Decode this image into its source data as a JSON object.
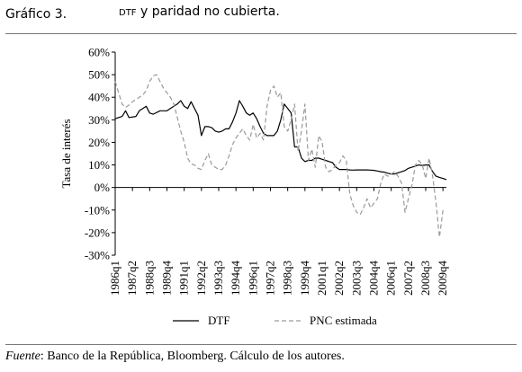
{
  "figure": {
    "number": "Gráfico 3.",
    "title_caps": "DTF",
    "title_rest": " y paridad no cubierta.",
    "source_label": "Fuente",
    "source_text": ": Banco de la República, Bloomberg. Cálculo de los autores."
  },
  "chart_data": {
    "type": "line",
    "ylabel": "Tasa de interés",
    "ylim": [
      -30,
      60
    ],
    "yticks": [
      "60%",
      "50%",
      "40%",
      "30%",
      "20%",
      "10%",
      "0%",
      "-10%",
      "-20%",
      "-30%"
    ],
    "ytick_values": [
      60,
      50,
      40,
      30,
      20,
      10,
      0,
      -10,
      -20,
      -30
    ],
    "xtick_labels": [
      "1986q1",
      "1987q2",
      "1988q3",
      "1989q4",
      "1991q1",
      "1992q2",
      "1993q3",
      "1994q4",
      "1996q1",
      "1997q2",
      "1998q3",
      "1999q4",
      "2001q1",
      "2002q2",
      "2003q3",
      "2004q4",
      "2006q1",
      "2007q2",
      "2008q3",
      "2009q4"
    ],
    "x_start": "1986q1",
    "x_end": "2010q1",
    "legend_position": "bottom",
    "grid": false,
    "zero_line": true,
    "colors": {
      "dtf": "#000000",
      "pnc": "#9a9a9a"
    },
    "series": [
      {
        "name": "DTF",
        "style": "solid",
        "points": [
          [
            "1986q1",
            30.5
          ],
          [
            "1986q3",
            31.5
          ],
          [
            "1986q4",
            34
          ],
          [
            "1987q1",
            31
          ],
          [
            "1987q3",
            31.5
          ],
          [
            "1987q4",
            34
          ],
          [
            "1988q2",
            36
          ],
          [
            "1988q3",
            33
          ],
          [
            "1988q4",
            32.5
          ],
          [
            "1989q2",
            34
          ],
          [
            "1989q4",
            34
          ],
          [
            "1990q1",
            35
          ],
          [
            "1990q3",
            37
          ],
          [
            "1990q4",
            38.5
          ],
          [
            "1991q1",
            36
          ],
          [
            "1991q2",
            35
          ],
          [
            "1991q3",
            38
          ],
          [
            "1991q4",
            35
          ],
          [
            "1992q1",
            32
          ],
          [
            "1992q2",
            23
          ],
          [
            "1992q3",
            27
          ],
          [
            "1992q4",
            27
          ],
          [
            "1993q1",
            26.5
          ],
          [
            "1993q2",
            25
          ],
          [
            "1993q3",
            24.5
          ],
          [
            "1993q4",
            25
          ],
          [
            "1994q1",
            26
          ],
          [
            "1994q2",
            26
          ],
          [
            "1994q3",
            29
          ],
          [
            "1994q4",
            33
          ],
          [
            "1995q1",
            38.5
          ],
          [
            "1995q2",
            36
          ],
          [
            "1995q3",
            33
          ],
          [
            "1995q4",
            32
          ],
          [
            "1996q1",
            33
          ],
          [
            "1996q2",
            30.5
          ],
          [
            "1996q3",
            27
          ],
          [
            "1996q4",
            24
          ],
          [
            "1997q1",
            23
          ],
          [
            "1997q2",
            23
          ],
          [
            "1997q3",
            23
          ],
          [
            "1997q4",
            25
          ],
          [
            "1998q1",
            30
          ],
          [
            "1998q2",
            37
          ],
          [
            "1998q3",
            35
          ],
          [
            "1998q4",
            33
          ],
          [
            "1999q1",
            18
          ],
          [
            "1999q2",
            18
          ],
          [
            "1999q3",
            13
          ],
          [
            "1999q4",
            11.5
          ],
          [
            "2000q1",
            12
          ],
          [
            "2000q2",
            12
          ],
          [
            "2000q3",
            13
          ],
          [
            "2000q4",
            13
          ],
          [
            "2001q1",
            12.5
          ],
          [
            "2001q2",
            12
          ],
          [
            "2001q3",
            11.5
          ],
          [
            "2001q4",
            11
          ],
          [
            "2002q1",
            9
          ],
          [
            "2002q2",
            8
          ],
          [
            "2002q3",
            8
          ],
          [
            "2002q4",
            8
          ],
          [
            "2003q1",
            7.8
          ],
          [
            "2003q2",
            7.7
          ],
          [
            "2003q3",
            7.8
          ],
          [
            "2003q4",
            7.8
          ],
          [
            "2004q1",
            7.8
          ],
          [
            "2004q2",
            7.8
          ],
          [
            "2004q3",
            7.7
          ],
          [
            "2004q4",
            7.6
          ],
          [
            "2005q1",
            7.3
          ],
          [
            "2005q2",
            7
          ],
          [
            "2005q3",
            6.8
          ],
          [
            "2005q4",
            6.3
          ],
          [
            "2006q1",
            6
          ],
          [
            "2006q2",
            6
          ],
          [
            "2006q3",
            6.5
          ],
          [
            "2006q4",
            7
          ],
          [
            "2007q1",
            7.5
          ],
          [
            "2007q2",
            8.5
          ],
          [
            "2007q3",
            9
          ],
          [
            "2007q4",
            9.5
          ],
          [
            "2008q1",
            10
          ],
          [
            "2008q2",
            9.8
          ],
          [
            "2008q3",
            10
          ],
          [
            "2008q4",
            10
          ],
          [
            "2009q1",
            7
          ],
          [
            "2009q2",
            5
          ],
          [
            "2009q3",
            4.5
          ],
          [
            "2009q4",
            4
          ],
          [
            "2010q1",
            3.5
          ]
        ]
      },
      {
        "name": "PNC estimada",
        "style": "dashed",
        "points": [
          [
            "1986q1",
            47
          ],
          [
            "1986q2",
            42
          ],
          [
            "1986q3",
            37
          ],
          [
            "1986q4",
            35.5
          ],
          [
            "1987q1",
            36.5
          ],
          [
            "1987q2",
            38
          ],
          [
            "1987q3",
            39
          ],
          [
            "1987q4",
            40
          ],
          [
            "1988q1",
            41
          ],
          [
            "1988q2",
            43
          ],
          [
            "1988q3",
            47
          ],
          [
            "1988q4",
            49.5
          ],
          [
            "1989q1",
            50
          ],
          [
            "1989q2",
            47
          ],
          [
            "1989q3",
            44
          ],
          [
            "1989q4",
            42
          ],
          [
            "1990q1",
            40
          ],
          [
            "1990q2",
            37
          ],
          [
            "1990q3",
            31
          ],
          [
            "1990q4",
            25
          ],
          [
            "1991q1",
            20
          ],
          [
            "1991q2",
            13
          ],
          [
            "1991q3",
            10.5
          ],
          [
            "1991q4",
            10
          ],
          [
            "1992q1",
            8.5
          ],
          [
            "1992q2",
            8
          ],
          [
            "1992q3",
            12
          ],
          [
            "1992q4",
            15
          ],
          [
            "1993q1",
            10
          ],
          [
            "1993q2",
            9
          ],
          [
            "1993q3",
            8
          ],
          [
            "1993q4",
            8
          ],
          [
            "1994q1",
            10
          ],
          [
            "1994q2",
            14
          ],
          [
            "1994q3",
            19
          ],
          [
            "1994q4",
            22
          ],
          [
            "1995q1",
            24
          ],
          [
            "1995q2",
            26
          ],
          [
            "1995q3",
            23
          ],
          [
            "1995q4",
            21
          ],
          [
            "1996q1",
            28
          ],
          [
            "1996q2",
            22
          ],
          [
            "1996q3",
            24
          ],
          [
            "1996q4",
            21
          ],
          [
            "1997q1",
            36
          ],
          [
            "1997q2",
            43
          ],
          [
            "1997q3",
            45
          ],
          [
            "1997q4",
            40
          ],
          [
            "1998q1",
            42
          ],
          [
            "1998q2",
            27
          ],
          [
            "1998q3",
            25
          ],
          [
            "1998q4",
            30
          ],
          [
            "1999q1",
            37
          ],
          [
            "1999q2",
            16
          ],
          [
            "1999q3",
            25
          ],
          [
            "1999q4",
            37
          ],
          [
            "2000q1",
            12
          ],
          [
            "2000q2",
            17
          ],
          [
            "2000q3",
            9
          ],
          [
            "2000q4",
            23
          ],
          [
            "2001q1",
            20
          ],
          [
            "2001q2",
            9
          ],
          [
            "2001q3",
            7
          ],
          [
            "2001q4",
            8
          ],
          [
            "2002q1",
            10
          ],
          [
            "2002q2",
            11
          ],
          [
            "2002q3",
            14
          ],
          [
            "2002q4",
            12
          ],
          [
            "2003q1",
            -3
          ],
          [
            "2003q2",
            -8
          ],
          [
            "2003q3",
            -11
          ],
          [
            "2003q4",
            -12
          ],
          [
            "2004q1",
            -9
          ],
          [
            "2004q2",
            -5
          ],
          [
            "2004q3",
            -9
          ],
          [
            "2004q4",
            -7
          ],
          [
            "2005q1",
            -5
          ],
          [
            "2005q2",
            2
          ],
          [
            "2005q3",
            6
          ],
          [
            "2005q4",
            5
          ],
          [
            "2006q1",
            6
          ],
          [
            "2006q2",
            7
          ],
          [
            "2006q3",
            5
          ],
          [
            "2006q4",
            2
          ],
          [
            "2007q1",
            -11
          ],
          [
            "2007q2",
            -5
          ],
          [
            "2007q3",
            1
          ],
          [
            "2007q4",
            10
          ],
          [
            "2008q1",
            12
          ],
          [
            "2008q2",
            10
          ],
          [
            "2008q3",
            4
          ],
          [
            "2008q4",
            13
          ],
          [
            "2009q1",
            5
          ],
          [
            "2009q2",
            -7
          ],
          [
            "2009q3",
            -22
          ],
          [
            "2009q4",
            -10
          ]
        ]
      }
    ]
  }
}
